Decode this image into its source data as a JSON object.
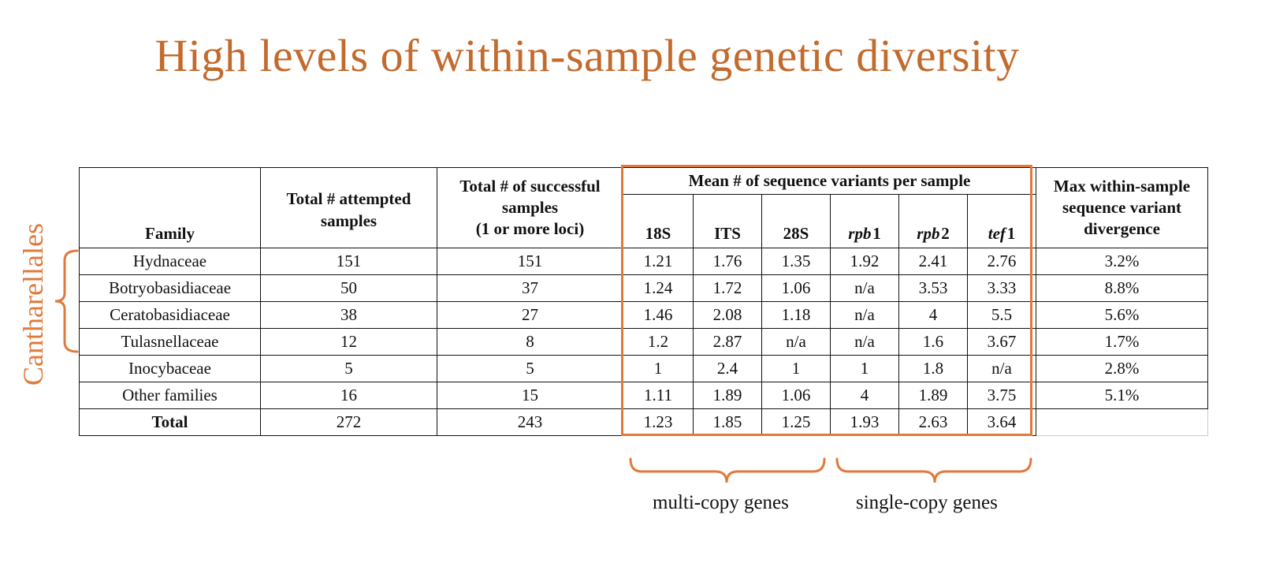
{
  "title": "High levels of within-sample genetic diversity",
  "side_label": "Cantharellales",
  "table": {
    "headers": {
      "family": "Family",
      "attempted": "Total # attempted samples",
      "successful_line1": "Total # of successful",
      "successful_line2": "samples",
      "successful_line3": "(1 or more loci)",
      "mean_group": "Mean # of sequence variants per sample",
      "max_div_line1": "Max within-sample",
      "max_div_line2": "sequence variant",
      "max_div_line3": "divergence",
      "loci": [
        {
          "prefix": "18S",
          "italic": ""
        },
        {
          "prefix": "ITS",
          "italic": ""
        },
        {
          "prefix": "28S",
          "italic": ""
        },
        {
          "italic": "rpb",
          "suffix": "1"
        },
        {
          "italic": "rpb",
          "suffix": "2"
        },
        {
          "italic": "tef",
          "suffix": "1"
        }
      ]
    },
    "rows": [
      {
        "family": "Hydnaceae",
        "attempted": "151",
        "successful": "151",
        "v18s": "1.21",
        "its": "1.76",
        "v28s": "1.35",
        "rpb1": "1.92",
        "rpb2": "2.41",
        "tef1": "2.76",
        "maxdiv": "3.2%"
      },
      {
        "family": "Botryobasidiaceae",
        "attempted": "50",
        "successful": "37",
        "v18s": "1.24",
        "its": "1.72",
        "v28s": "1.06",
        "rpb1": "n/a",
        "rpb2": "3.53",
        "tef1": "3.33",
        "maxdiv": "8.8%"
      },
      {
        "family": "Ceratobasidiaceae",
        "attempted": "38",
        "successful": "27",
        "v18s": "1.46",
        "its": "2.08",
        "v28s": "1.18",
        "rpb1": "n/a",
        "rpb2": "4",
        "tef1": "5.5",
        "maxdiv": "5.6%"
      },
      {
        "family": "Tulasnellaceae",
        "attempted": "12",
        "successful": "8",
        "v18s": "1.2",
        "its": "2.87",
        "v28s": "n/a",
        "rpb1": "n/a",
        "rpb2": "1.6",
        "tef1": "3.67",
        "maxdiv": "1.7%"
      },
      {
        "family": "Inocybaceae",
        "attempted": "5",
        "successful": "5",
        "v18s": "1",
        "its": "2.4",
        "v28s": "1",
        "rpb1": "1",
        "rpb2": "1.8",
        "tef1": "n/a",
        "maxdiv": "2.8%"
      },
      {
        "family": "Other families",
        "attempted": "16",
        "successful": "15",
        "v18s": "1.11",
        "its": "1.89",
        "v28s": "1.06",
        "rpb1": "4",
        "rpb2": "1.89",
        "tef1": "3.75",
        "maxdiv": "5.1%"
      },
      {
        "family": "Total",
        "attempted": "272",
        "successful": "243",
        "v18s": "1.23",
        "its": "1.85",
        "v28s": "1.25",
        "rpb1": "1.93",
        "rpb2": "2.63",
        "tef1": "3.64",
        "maxdiv": ""
      }
    ]
  },
  "groups": {
    "multi": "multi-copy genes",
    "single": "single-copy genes"
  },
  "colors": {
    "accent": "#e07a3c",
    "title": "#c36a2d"
  }
}
